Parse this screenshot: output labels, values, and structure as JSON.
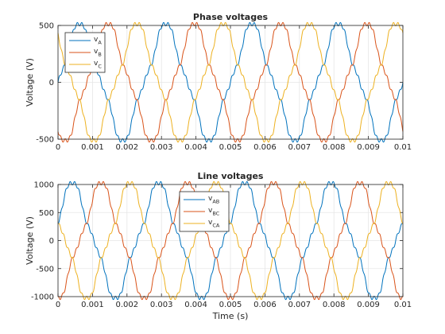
{
  "chart_data": [
    {
      "type": "line",
      "title": "Phase voltages",
      "xlabel": "",
      "ylabel": "Voltage (V)",
      "xlim": [
        0,
        0.01
      ],
      "ylim": [
        -500,
        500
      ],
      "x_ticks": [
        "0",
        "0.001",
        "0.002",
        "0.003",
        "0.004",
        "0.005",
        "0.006",
        "0.007",
        "0.008",
        "0.009",
        "0.01"
      ],
      "y_ticks": [
        "500",
        "0",
        "-500"
      ],
      "grid": true,
      "legend_position": "top-left",
      "waveform": {
        "fundamental_hz": 400,
        "peak": 475
      },
      "series": [
        {
          "name": "vA",
          "label_main": "v",
          "label_sub": "A",
          "color": "#0072BD",
          "phase_deg": 0
        },
        {
          "name": "vB",
          "label_main": "v",
          "label_sub": "B",
          "color": "#D95319",
          "phase_deg": -120
        },
        {
          "name": "vC",
          "label_main": "v",
          "label_sub": "C",
          "color": "#EDB120",
          "phase_deg": 120
        }
      ]
    },
    {
      "type": "line",
      "title": "Line voltages",
      "xlabel": "Time (s)",
      "ylabel": "Voltage (V)",
      "xlim": [
        0,
        0.01
      ],
      "ylim": [
        -1000,
        1000
      ],
      "x_ticks": [
        "0",
        "0.001",
        "0.002",
        "0.003",
        "0.004",
        "0.005",
        "0.006",
        "0.007",
        "0.008",
        "0.009",
        "0.01"
      ],
      "y_ticks": [
        "1000",
        "500",
        "0",
        "-500",
        "-1000"
      ],
      "grid": true,
      "legend_position": "top-center",
      "waveform": {
        "fundamental_hz": 400,
        "peak": 950
      },
      "series": [
        {
          "name": "vAB",
          "label_main": "v",
          "label_sub": "AB",
          "color": "#0072BD",
          "phase_deg": 30
        },
        {
          "name": "vBC",
          "label_main": "v",
          "label_sub": "BC",
          "color": "#D95319",
          "phase_deg": -90
        },
        {
          "name": "vCA",
          "label_main": "v",
          "label_sub": "CA",
          "color": "#EDB120",
          "phase_deg": 150
        }
      ]
    }
  ]
}
